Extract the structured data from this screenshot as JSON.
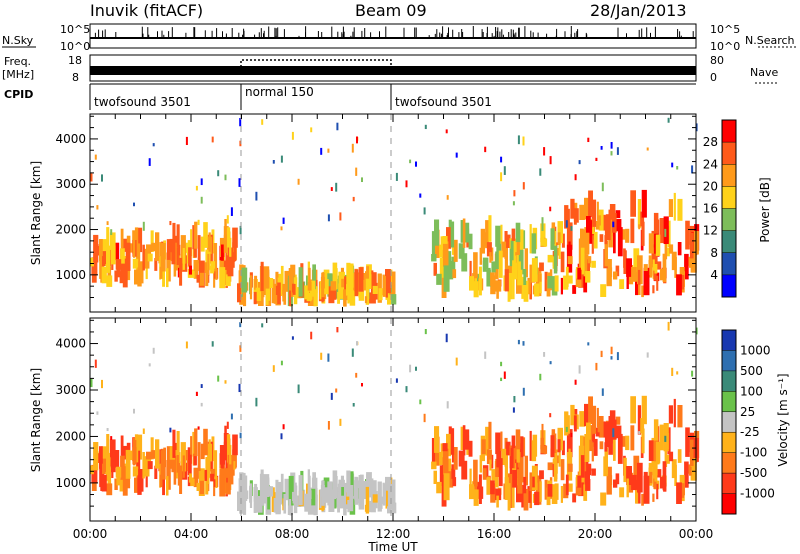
{
  "header": {
    "station": "Inuvik (fitACF)",
    "beam": "Beam 09",
    "date": "28/Jan/2013"
  },
  "noise_panel": {
    "left_label": "N.Sky",
    "right_label": "N.Search",
    "left_ticks": [
      "10^5",
      "10^0"
    ],
    "right_ticks": [
      "10^5",
      "10^0"
    ]
  },
  "freq_panel": {
    "left_label_line1": "Freq.",
    "left_label_line2": "[MHz]",
    "right_label": "Nave",
    "left_ticks": [
      "18",
      "8"
    ],
    "right_ticks": [
      "80",
      "0"
    ]
  },
  "cpid_panel": {
    "label": "CPID",
    "segments": [
      {
        "name": "twofsound 3501",
        "start_h": 0,
        "end_h": 6
      },
      {
        "name": "normal 150",
        "start_h": 6,
        "end_h": 12
      },
      {
        "name": "twofsound 3501",
        "start_h": 12,
        "end_h": 24
      }
    ]
  },
  "power_panel": {
    "ylabel": "Slant Range [km]",
    "yticks": [
      "1000",
      "2000",
      "3000",
      "4000"
    ],
    "colorbar_label": "Power [dB]",
    "colorbar_ticks": [
      "4",
      "8",
      "12",
      "16",
      "20",
      "24",
      "28"
    ],
    "colors": [
      "#0000ff",
      "#1f4fb0",
      "#3a8a78",
      "#7dbd5a",
      "#ffd21a",
      "#ff9a1a",
      "#ff5a1a",
      "#ff0000"
    ]
  },
  "velocity_panel": {
    "ylabel": "Slant Range [km]",
    "yticks": [
      "1000",
      "2000",
      "3000",
      "4000"
    ],
    "colorbar_label": "Velocity [m s⁻¹]",
    "colorbar_ticks": [
      "1000",
      "500",
      "100",
      "25",
      "-25",
      "-100",
      "-500",
      "-1000"
    ],
    "colors": [
      "#1838b0",
      "#2e6fb0",
      "#3a8a78",
      "#6ac24a",
      "#c4c4c4",
      "#ffb21a",
      "#ff7a1a",
      "#ff3a1a",
      "#ff0000"
    ]
  },
  "x_axis": {
    "label": "Time UT",
    "ticks": [
      "00:00",
      "04:00",
      "08:00",
      "12:00",
      "16:00",
      "20:00",
      "00:00"
    ]
  },
  "chart_data": {
    "type": "heatmap",
    "title": "Inuvik (fitACF) Beam 09 28/Jan/2013",
    "xlabel": "Time UT",
    "ylabel": "Slant Range [km]",
    "xlim_hours": [
      0,
      24
    ],
    "ylim_km": [
      180,
      4550
    ],
    "power_scale_db": [
      0,
      30
    ],
    "velocity_scale_ms": [
      -1000,
      1000
    ],
    "echo_regions": [
      {
        "start_h": 0.0,
        "end_h": 5.8,
        "range_km": [
          700,
          1800
        ],
        "power_db": 22,
        "velocity": -150
      },
      {
        "start_h": 5.8,
        "end_h": 12.0,
        "range_km": [
          300,
          800
        ],
        "power_db": 20,
        "velocity": 0
      },
      {
        "start_h": 13.5,
        "end_h": 18.5,
        "range_km": [
          400,
          2000
        ],
        "power_db": 18,
        "velocity": -100
      },
      {
        "start_h": 18.5,
        "end_h": 24.0,
        "range_km": [
          500,
          2600
        ],
        "power_db": 24,
        "velocity": -200
      }
    ]
  }
}
